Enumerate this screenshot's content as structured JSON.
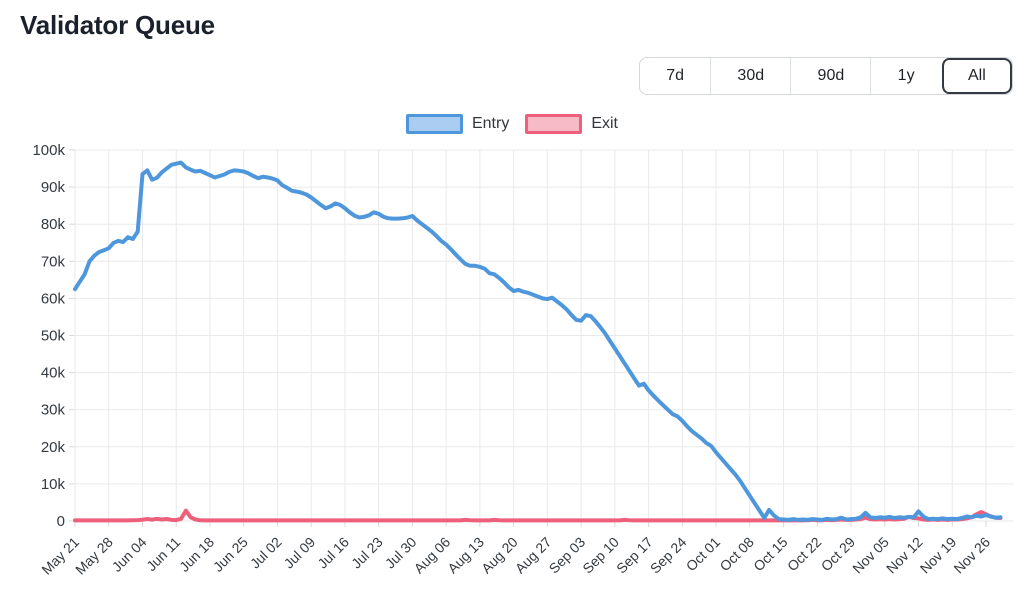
{
  "page": {
    "title": "Validator Queue"
  },
  "range_selector": {
    "options": [
      {
        "label": "7d",
        "active": false
      },
      {
        "label": "30d",
        "active": false
      },
      {
        "label": "90d",
        "active": false
      },
      {
        "label": "1y",
        "active": false
      },
      {
        "label": "All",
        "active": true
      }
    ]
  },
  "legend": {
    "items": [
      {
        "label": "Entry",
        "line_color": "#4e97dd",
        "fill_color": "#abcdf1"
      },
      {
        "label": "Exit",
        "line_color": "#ee5f7c",
        "fill_color": "#f7bac7"
      }
    ]
  },
  "theme": {
    "grid_color": "#e9e9e9",
    "tick_color": "#d9d9d9",
    "axis_text_color": "#343a40",
    "entry_color": "#4e97dd",
    "exit_color": "#ee5f7c"
  },
  "chart_data": {
    "type": "line",
    "title": "Validator Queue",
    "xlabel": "",
    "ylabel": "",
    "grid": true,
    "legend_position": "top",
    "x_tick_interval_days": 7,
    "x_tick_labels": [
      "May 21",
      "May 28",
      "Jun 04",
      "Jun 11",
      "Jun 18",
      "Jun 25",
      "Jul 02",
      "Jul 09",
      "Jul 16",
      "Jul 23",
      "Jul 30",
      "Aug 06",
      "Aug 13",
      "Aug 20",
      "Aug 27",
      "Sep 03",
      "Sep 10",
      "Sep 17",
      "Sep 24",
      "Oct 01",
      "Oct 08",
      "Oct 15",
      "Oct 22",
      "Oct 29",
      "Nov 05",
      "Nov 12",
      "Nov 19",
      "Nov 26"
    ],
    "y_axis": {
      "max_k": 100,
      "tick_labels": [
        "0",
        "10k",
        "20k",
        "30k",
        "40k",
        "50k",
        "60k",
        "70k",
        "80k",
        "90k",
        "100k"
      ]
    },
    "values_unit": "thousands of validators, one point per day starting May 21",
    "series": [
      {
        "name": "Entry",
        "color": "#4e97dd",
        "values_k": [
          62.5,
          64.5,
          66.5,
          70,
          71.5,
          72.5,
          73,
          73.5,
          75,
          75.5,
          75.2,
          76.5,
          76,
          78,
          93.5,
          94.5,
          92,
          92.5,
          94,
          95,
          96,
          96.3,
          96.6,
          95.3,
          94.7,
          94.2,
          94.4,
          93.8,
          93.2,
          92.6,
          93,
          93.4,
          94.1,
          94.5,
          94.4,
          94.2,
          93.7,
          93,
          92.4,
          92.8,
          92.6,
          92.3,
          91.8,
          90.5,
          89.8,
          89,
          88.8,
          88.5,
          88,
          87.2,
          86.2,
          85.2,
          84.3,
          84.8,
          85.6,
          85.2,
          84.3,
          83.2,
          82.3,
          81.8,
          82,
          82.4,
          83.2,
          82.8,
          82,
          81.6,
          81.5,
          81.5,
          81.6,
          81.8,
          82.2,
          81,
          80,
          79,
          78,
          76.8,
          75.5,
          74.5,
          73.2,
          71.8,
          70.5,
          69.3,
          68.8,
          68.8,
          68.5,
          68,
          66.8,
          66.5,
          65.5,
          64.3,
          63,
          62,
          62.3,
          61.8,
          61.5,
          61,
          60.5,
          60,
          59.8,
          60.2,
          59.2,
          58.2,
          57,
          55.5,
          54.2,
          54,
          55.5,
          55.2,
          53.8,
          52.2,
          50.5,
          48.5,
          46.5,
          44.5,
          42.5,
          40.5,
          38.5,
          36.5,
          37,
          35.2,
          33.8,
          32.5,
          31.2,
          30,
          28.8,
          28.2,
          27,
          25.5,
          24.2,
          23.2,
          22.2,
          21,
          20.2,
          18.5,
          17,
          15.5,
          14,
          12.5,
          10.8,
          8.8,
          6.8,
          4.8,
          2.8,
          0.8,
          3,
          1.5,
          0.5,
          0.4,
          0.3,
          0.5,
          0.3,
          0.4,
          0.3,
          0.5,
          0.4,
          0.3,
          0.6,
          0.4,
          0.5,
          0.9,
          0.4,
          0.5,
          0.6,
          1,
          2.2,
          1,
          0.8,
          1,
          0.9,
          1.1,
          0.8,
          1,
          0.9,
          1.1,
          1,
          2.6,
          1.2,
          0.5,
          0.6,
          0.5,
          0.7,
          0.5,
          0.6,
          0.5,
          0.8,
          1.2,
          1,
          1.4,
          1.2,
          1.6,
          1.2,
          0.9,
          1
        ]
      },
      {
        "name": "Exit",
        "color": "#ee5f7c",
        "values_k": [
          0.15,
          0.15,
          0.15,
          0.15,
          0.15,
          0.15,
          0.15,
          0.15,
          0.15,
          0.15,
          0.15,
          0.15,
          0.2,
          0.25,
          0.35,
          0.55,
          0.35,
          0.6,
          0.4,
          0.55,
          0.3,
          0.25,
          0.6,
          2.8,
          1,
          0.4,
          0.2,
          0.15,
          0.15,
          0.15,
          0.15,
          0.15,
          0.15,
          0.15,
          0.15,
          0.15,
          0.15,
          0.15,
          0.15,
          0.15,
          0.15,
          0.15,
          0.15,
          0.15,
          0.15,
          0.15,
          0.15,
          0.15,
          0.15,
          0.15,
          0.15,
          0.15,
          0.15,
          0.15,
          0.15,
          0.15,
          0.15,
          0.15,
          0.15,
          0.15,
          0.15,
          0.15,
          0.15,
          0.15,
          0.15,
          0.15,
          0.15,
          0.15,
          0.15,
          0.15,
          0.15,
          0.15,
          0.15,
          0.15,
          0.15,
          0.15,
          0.15,
          0.15,
          0.15,
          0.15,
          0.15,
          0.3,
          0.2,
          0.15,
          0.15,
          0.15,
          0.15,
          0.3,
          0.2,
          0.15,
          0.15,
          0.15,
          0.15,
          0.15,
          0.15,
          0.15,
          0.15,
          0.15,
          0.15,
          0.15,
          0.15,
          0.15,
          0.15,
          0.15,
          0.15,
          0.15,
          0.15,
          0.15,
          0.15,
          0.15,
          0.15,
          0.15,
          0.15,
          0.15,
          0.3,
          0.2,
          0.15,
          0.15,
          0.15,
          0.15,
          0.15,
          0.15,
          0.15,
          0.15,
          0.15,
          0.15,
          0.15,
          0.15,
          0.15,
          0.15,
          0.15,
          0.15,
          0.15,
          0.15,
          0.15,
          0.15,
          0.15,
          0.15,
          0.15,
          0.15,
          0.15,
          0.15,
          0.15,
          0.15,
          0.15,
          0.15,
          0.2,
          0.15,
          0.2,
          0.15,
          0.2,
          0.15,
          0.2,
          0.3,
          0.2,
          0.2,
          0.3,
          0.2,
          0.3,
          0.4,
          0.3,
          0.3,
          0.4,
          0.5,
          0.9,
          0.5,
          0.4,
          0.5,
          0.4,
          0.5,
          0.4,
          0.5,
          0.6,
          1.1,
          0.8,
          0.7,
          0.4,
          0.3,
          0.4,
          0.3,
          0.4,
          0.3,
          0.4,
          0.4,
          0.5,
          0.7,
          1,
          1.8,
          2.4,
          1.8,
          1.2,
          0.9,
          0.8
        ]
      }
    ]
  }
}
